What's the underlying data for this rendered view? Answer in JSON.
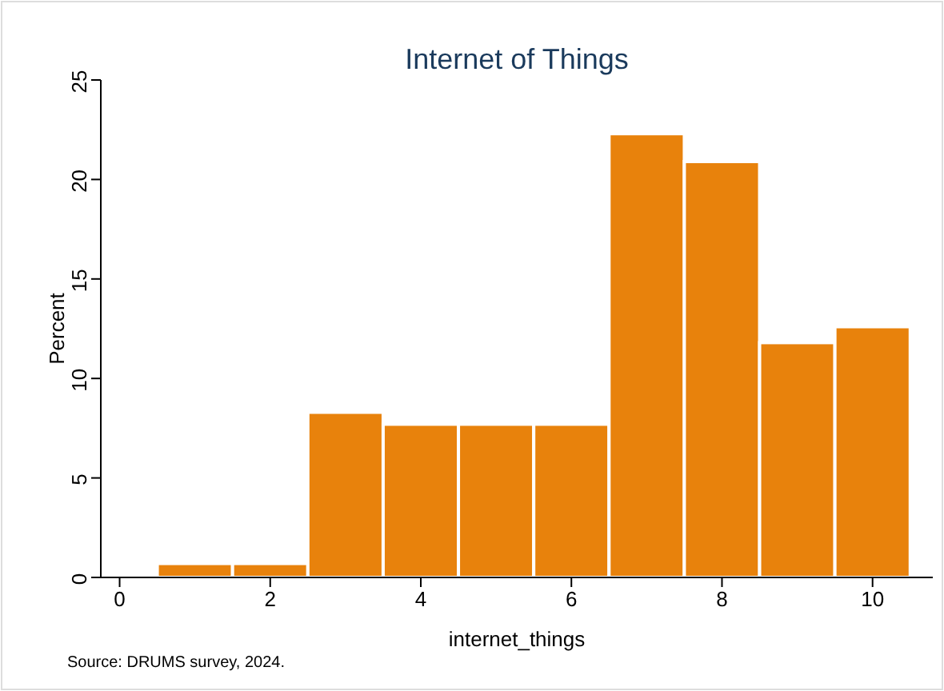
{
  "chart_data": {
    "type": "histogram",
    "title": "Internet of Things",
    "xlabel": "internet_things",
    "ylabel": "Percent",
    "bins": [
      0.5,
      1.5,
      2.5,
      3.5,
      4.5,
      5.5,
      6.5,
      7.5,
      8.5,
      9.5,
      10.5
    ],
    "values": [
      0.7,
      0.7,
      8.3,
      7.7,
      7.7,
      7.7,
      22.3,
      20.9,
      11.8,
      12.6
    ],
    "color": "#e8820c",
    "xlim": [
      -0.25,
      10.8
    ],
    "xticks": [
      0,
      2,
      4,
      6,
      8,
      10
    ],
    "ylim": [
      0,
      25
    ],
    "yticks": [
      0,
      5,
      10,
      15,
      20,
      25
    ],
    "grid": false,
    "annotations": [
      "Source: DRUMS survey, 2024."
    ]
  }
}
